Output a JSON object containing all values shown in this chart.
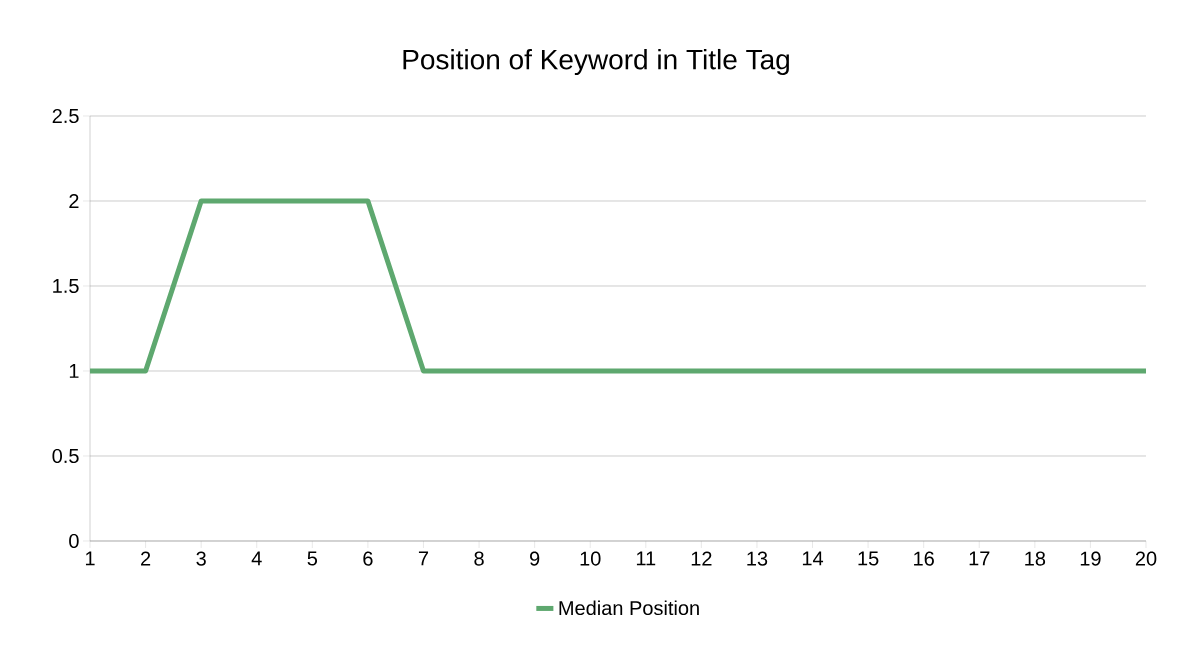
{
  "chart_data": {
    "type": "line",
    "title": "Position of Keyword in Title Tag",
    "x": [
      1,
      2,
      3,
      4,
      5,
      6,
      7,
      8,
      9,
      10,
      11,
      12,
      13,
      14,
      15,
      16,
      17,
      18,
      19,
      20
    ],
    "series": [
      {
        "name": "Median Position",
        "color": "#5ea86f",
        "values": [
          1,
          1,
          2,
          2,
          2,
          2,
          1,
          1,
          1,
          1,
          1,
          1,
          1,
          1,
          1,
          1,
          1,
          1,
          1,
          1
        ]
      }
    ],
    "xlim": [
      1,
      20
    ],
    "xticks": [
      1,
      2,
      3,
      4,
      5,
      6,
      7,
      8,
      9,
      10,
      11,
      12,
      13,
      14,
      15,
      16,
      17,
      18,
      19,
      20
    ],
    "ylim": [
      0,
      2.5
    ],
    "yticks": [
      0,
      0.5,
      1,
      1.5,
      2,
      2.5
    ],
    "grid": "y",
    "legend": "bottom",
    "marker": "none",
    "line_style": "solid"
  }
}
